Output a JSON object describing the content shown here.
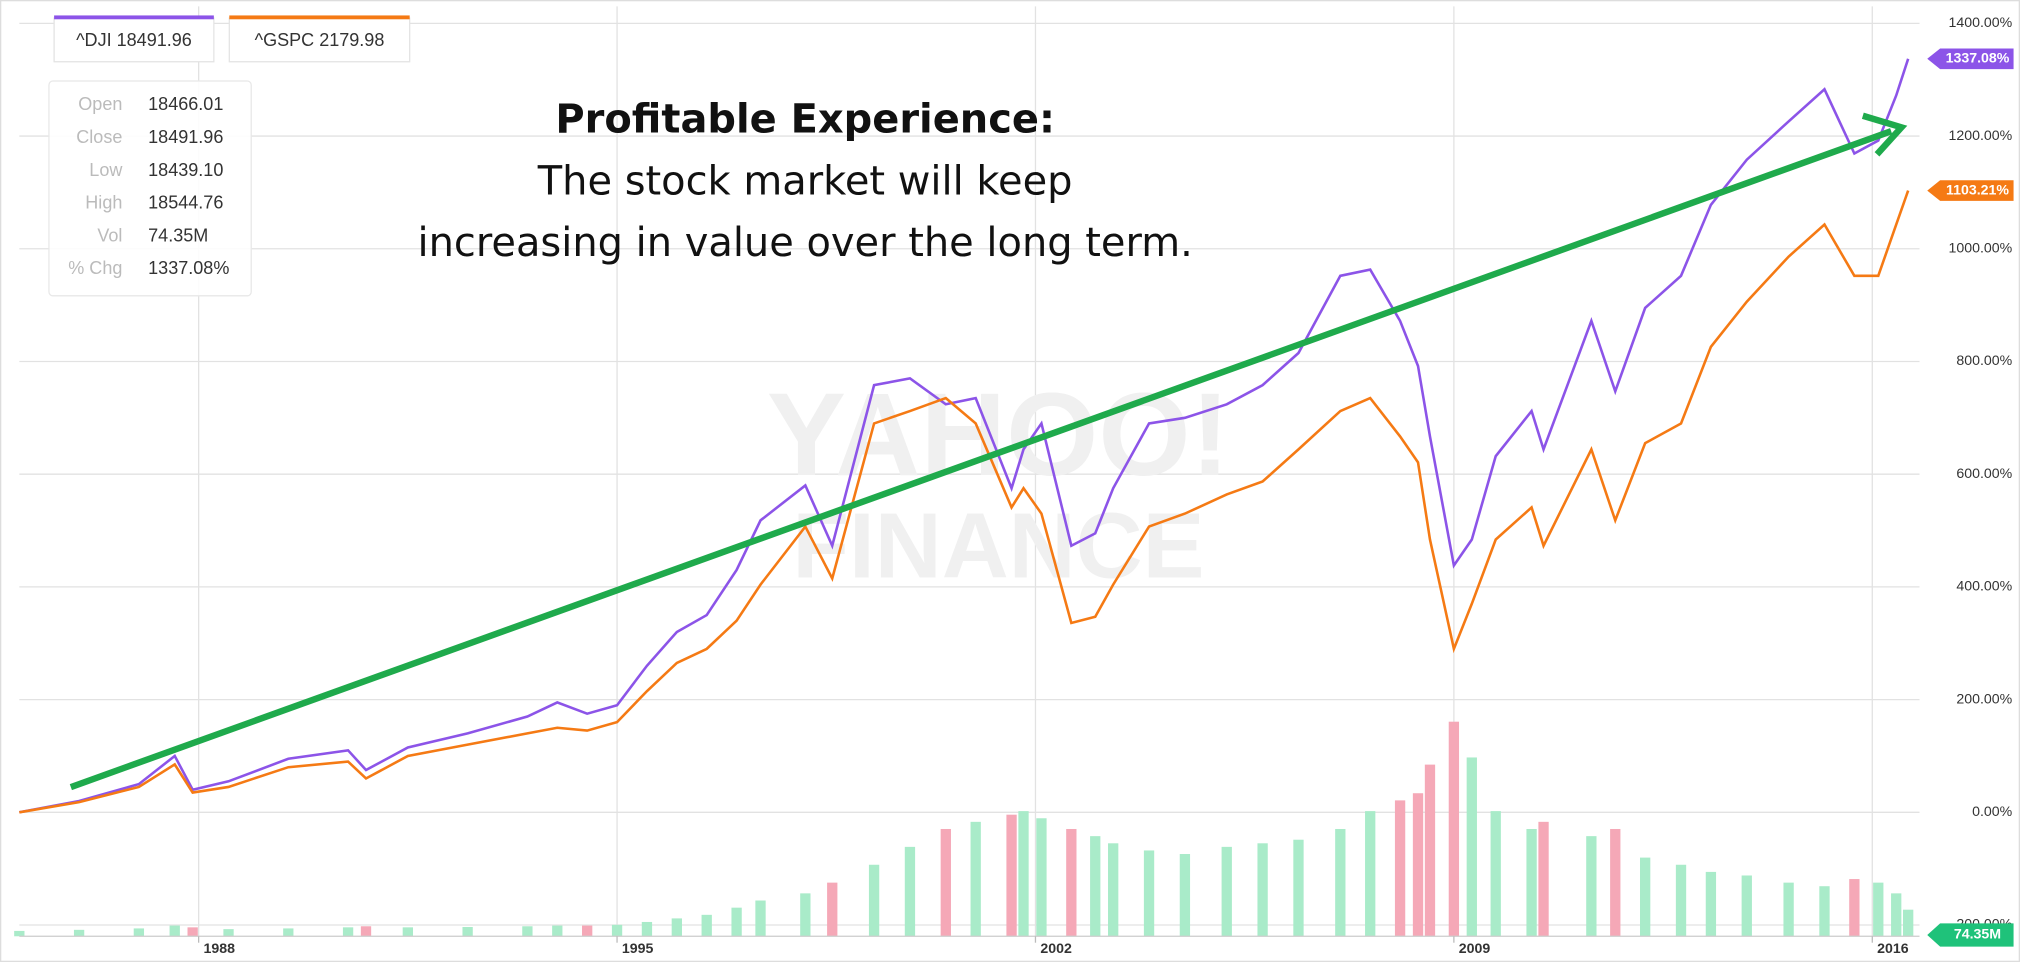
{
  "chart_data": {
    "type": "line",
    "annotation": {
      "heading": "Profitable Experience:",
      "lines": [
        "The stock market will keep",
        "increasing in value over the long term."
      ]
    },
    "watermark": [
      "YAHOO!",
      "FINANCE"
    ],
    "info": [
      [
        "Open",
        "18466.01"
      ],
      [
        "Close",
        "18491.96"
      ],
      [
        "Low",
        "18439.10"
      ],
      [
        "High",
        "18544.76"
      ],
      [
        "Vol",
        "74.35M"
      ],
      [
        "% Chg",
        "1337.08%"
      ]
    ],
    "x": [
      1985,
      1986,
      1987,
      1987.6,
      1987.9,
      1988.5,
      1989.5,
      1990.5,
      1990.8,
      1991.5,
      1992.5,
      1993.5,
      1994,
      1994.5,
      1995,
      1995.5,
      1996,
      1996.5,
      1997,
      1997.4,
      1998.15,
      1998.6,
      1999.3,
      1999.9,
      2000.5,
      2001,
      2001.6,
      2001.8,
      2002.1,
      2002.6,
      2003,
      2003.3,
      2003.9,
      2004.5,
      2005.2,
      2005.8,
      2006.4,
      2007.1,
      2007.6,
      2008.1,
      2008.4,
      2008.6,
      2009,
      2009.3,
      2009.7,
      2010.3,
      2010.5,
      2011.3,
      2011.7,
      2012.2,
      2012.8,
      2013.3,
      2013.9,
      2014.6,
      2015.2,
      2015.7,
      2016.1,
      2016.4,
      2016.6
    ],
    "series": [
      {
        "name": "^DJI",
        "price": 18491.96,
        "color": "#8c54e8",
        "end_label": "1337.08%",
        "values": [
          0,
          20,
          50,
          100,
          40,
          55,
          95,
          110,
          75,
          115,
          140,
          170,
          195,
          175,
          190,
          260,
          320,
          350,
          430,
          518,
          580,
          473,
          758,
          770,
          724,
          735,
          575,
          644,
          690,
          473,
          495,
          575,
          690,
          700,
          724,
          758,
          815,
          952,
          963,
          872,
          792,
          667,
          438,
          484,
          632,
          712,
          644,
          872,
          747,
          895,
          952,
          1078,
          1158,
          1226,
          1283,
          1169,
          1192,
          1272,
          1337.08
        ]
      },
      {
        "name": "^GSPC",
        "price": 2179.98,
        "color": "#f57a14",
        "end_label": "1103.21%",
        "values": [
          0,
          18,
          45,
          85,
          35,
          45,
          80,
          90,
          60,
          100,
          120,
          140,
          150,
          145,
          160,
          215,
          265,
          290,
          340,
          404,
          507,
          415,
          690,
          712,
          735,
          690,
          541,
          575,
          530,
          336,
          347,
          404,
          507,
          530,
          564,
          587,
          644,
          712,
          735,
          667,
          621,
          484,
          290,
          370,
          484,
          541,
          473,
          644,
          518,
          655,
          690,
          826,
          906,
          986,
          1043,
          952,
          952,
          1043,
          1103.21
        ]
      },
      {
        "name": "Vol",
        "type": "bar",
        "axis": "y2",
        "up_color": "#a9ebc9",
        "down_color": "#f5a8b7",
        "end_label": "74.35M",
        "end_color": "#1fc27a",
        "values": [
          15,
          18,
          22,
          30,
          25,
          20,
          22,
          25,
          28,
          25,
          26,
          28,
          30,
          30,
          32,
          40,
          50,
          60,
          80,
          100,
          120,
          150,
          200,
          250,
          300,
          320,
          340,
          350,
          330,
          300,
          280,
          260,
          240,
          230,
          250,
          260,
          270,
          300,
          350,
          380,
          400,
          480,
          600,
          500,
          350,
          300,
          320,
          280,
          300,
          220,
          200,
          180,
          170,
          150,
          140,
          160,
          150,
          120,
          74.35
        ]
      }
    ],
    "xlim": [
      1985,
      2016.79
    ],
    "xticks": [
      1988,
      1995,
      2002,
      2009,
      2016
    ],
    "ylim": [
      -220,
      1430
    ],
    "yticks": [
      {
        "value": -200,
        "label": "-200.00%"
      },
      {
        "value": 0,
        "label": "0.00%"
      },
      {
        "value": 200,
        "label": "200.00%"
      },
      {
        "value": 400,
        "label": "400.00%"
      },
      {
        "value": 600,
        "label": "600.00%"
      },
      {
        "value": 800,
        "label": "800.00%"
      },
      {
        "value": 1000,
        "label": "1000.00%"
      },
      {
        "value": 1200,
        "label": "1200.00%"
      },
      {
        "value": 1400,
        "label": "1400.00%"
      }
    ],
    "y2lim": [
      0,
      2600
    ],
    "grid": true
  }
}
